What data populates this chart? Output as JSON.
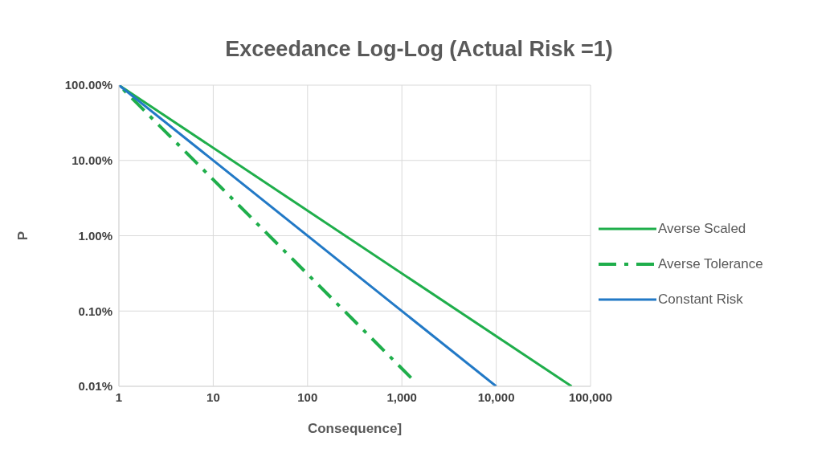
{
  "chart_data": {
    "type": "line",
    "title": "Exceedance Log-Log (Actual Risk =1)",
    "xlabel": "Consequence]",
    "ylabel": "P",
    "log": "xy",
    "grid": true,
    "legend": "right",
    "marker": "none",
    "xlim": [
      1,
      100000
    ],
    "xticks": [
      {
        "value": 1,
        "label": "1"
      },
      {
        "value": 10,
        "label": "10"
      },
      {
        "value": 100,
        "label": "100"
      },
      {
        "value": 1000,
        "label": "1,000"
      },
      {
        "value": 10000,
        "label": "10,000"
      },
      {
        "value": 100000,
        "label": "100,000"
      }
    ],
    "ylim": [
      0.01,
      100
    ],
    "yticks": [
      {
        "value": 0.01,
        "label": "0.01%"
      },
      {
        "value": 0.1,
        "label": "0.10%"
      },
      {
        "value": 1,
        "label": "1.00%"
      },
      {
        "value": 10,
        "label": "10.00%"
      },
      {
        "value": 100,
        "label": "100.00%"
      }
    ],
    "series": [
      {
        "name": "Averse Scaled",
        "color": "#1fae4b",
        "line_style": "solid",
        "x": [
          1,
          63000
        ],
        "values": [
          100,
          0.01
        ]
      },
      {
        "name": "Averse Tolerance",
        "color": "#1fae4b",
        "line_style": "dashed",
        "x": [
          1,
          1250
        ],
        "values": [
          100,
          0.013
        ]
      },
      {
        "name": "Constant Risk",
        "color": "#2279c6",
        "line_style": "solid",
        "x": [
          1,
          10000
        ],
        "values": [
          100,
          0.01
        ]
      }
    ]
  }
}
